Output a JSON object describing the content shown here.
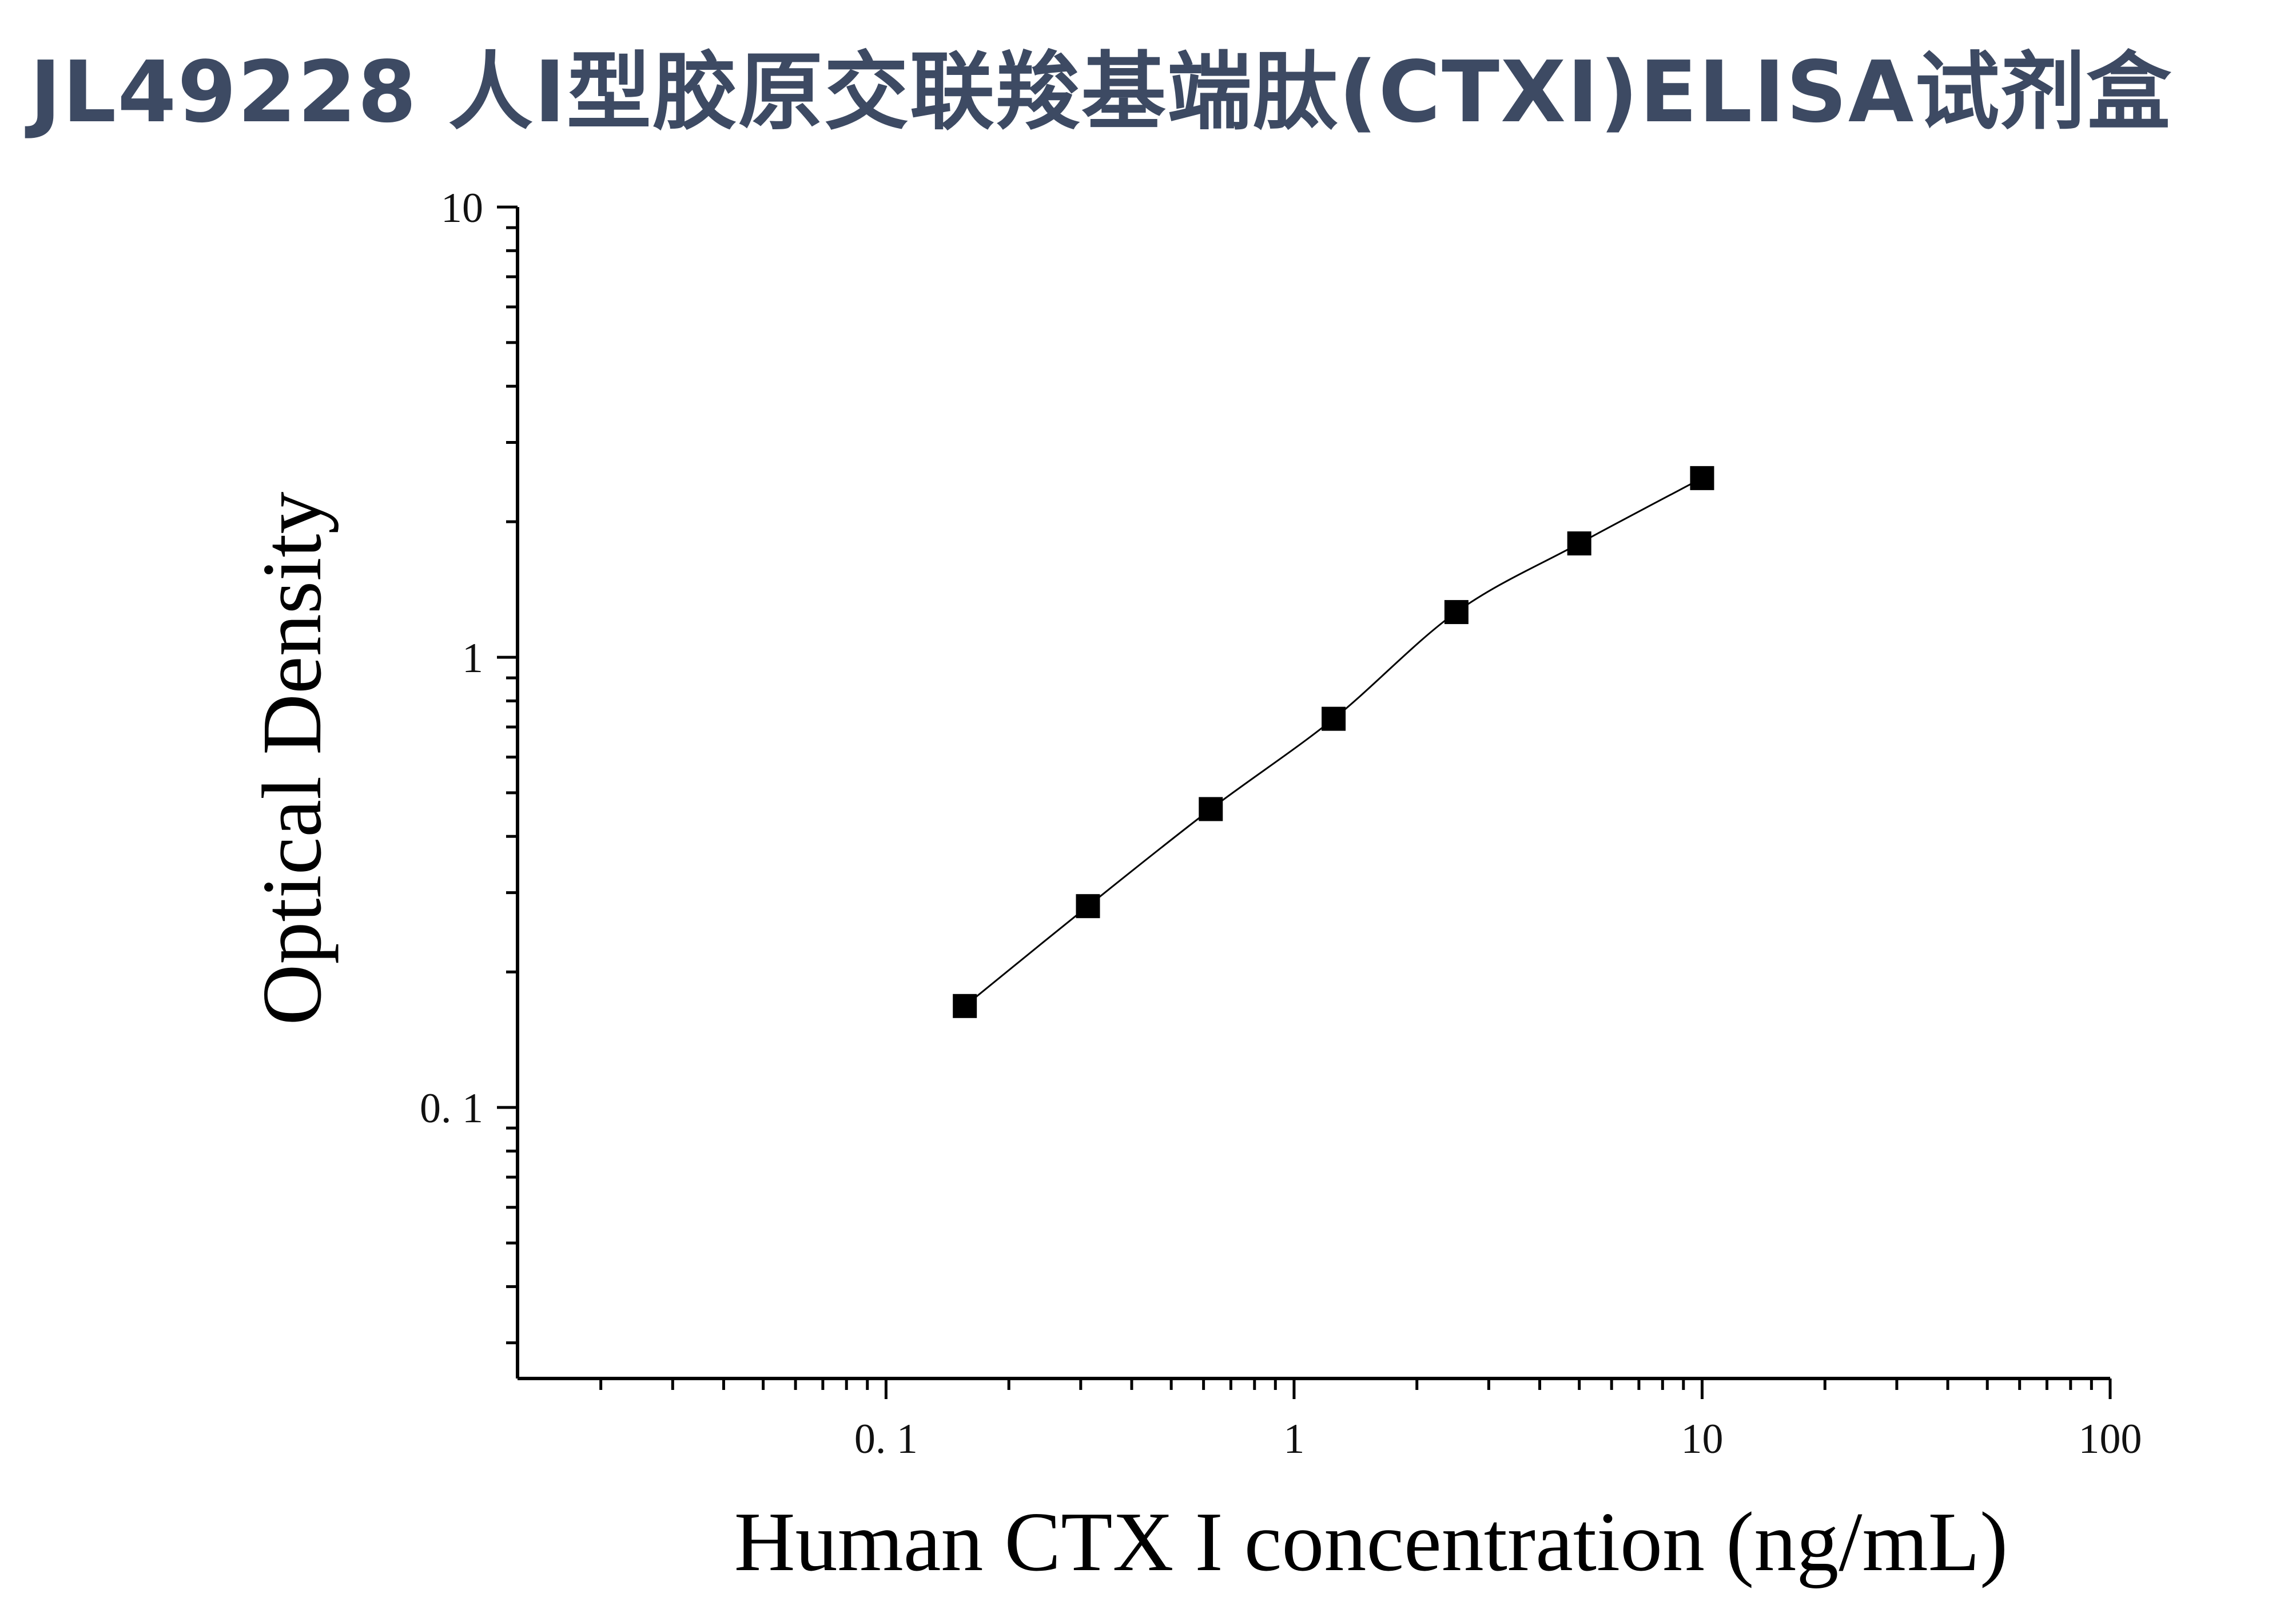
{
  "title": "JL49228 人I型胶原交联羧基端肽(CTXI)ELISA试剂盒",
  "chart_data": {
    "type": "scatter",
    "xlabel": "Human CTX I concentration (ng/mL)",
    "ylabel": "Optical Density",
    "x_scale": "log",
    "y_scale": "log",
    "xlim": [
      0.0125,
      100
    ],
    "ylim": [
      0.025,
      10
    ],
    "x_ticks": [
      0.1,
      1,
      10,
      100
    ],
    "x_tick_labels": [
      "0. 1",
      "1",
      "10",
      "100"
    ],
    "y_ticks": [
      0.1,
      1,
      10
    ],
    "y_tick_labels": [
      "0. 1",
      "1",
      "10"
    ],
    "grid": false,
    "marker": "square",
    "fit_curve": true,
    "points": [
      {
        "x": 0.156,
        "y": 0.168
      },
      {
        "x": 0.3125,
        "y": 0.28
      },
      {
        "x": 0.625,
        "y": 0.46
      },
      {
        "x": 1.25,
        "y": 0.73
      },
      {
        "x": 2.5,
        "y": 1.26
      },
      {
        "x": 5,
        "y": 1.79
      },
      {
        "x": 10,
        "y": 2.5
      }
    ],
    "colors": {
      "marker": "#000000",
      "line": "#000000",
      "axis": "#000000",
      "title": "#3d4a63"
    }
  }
}
